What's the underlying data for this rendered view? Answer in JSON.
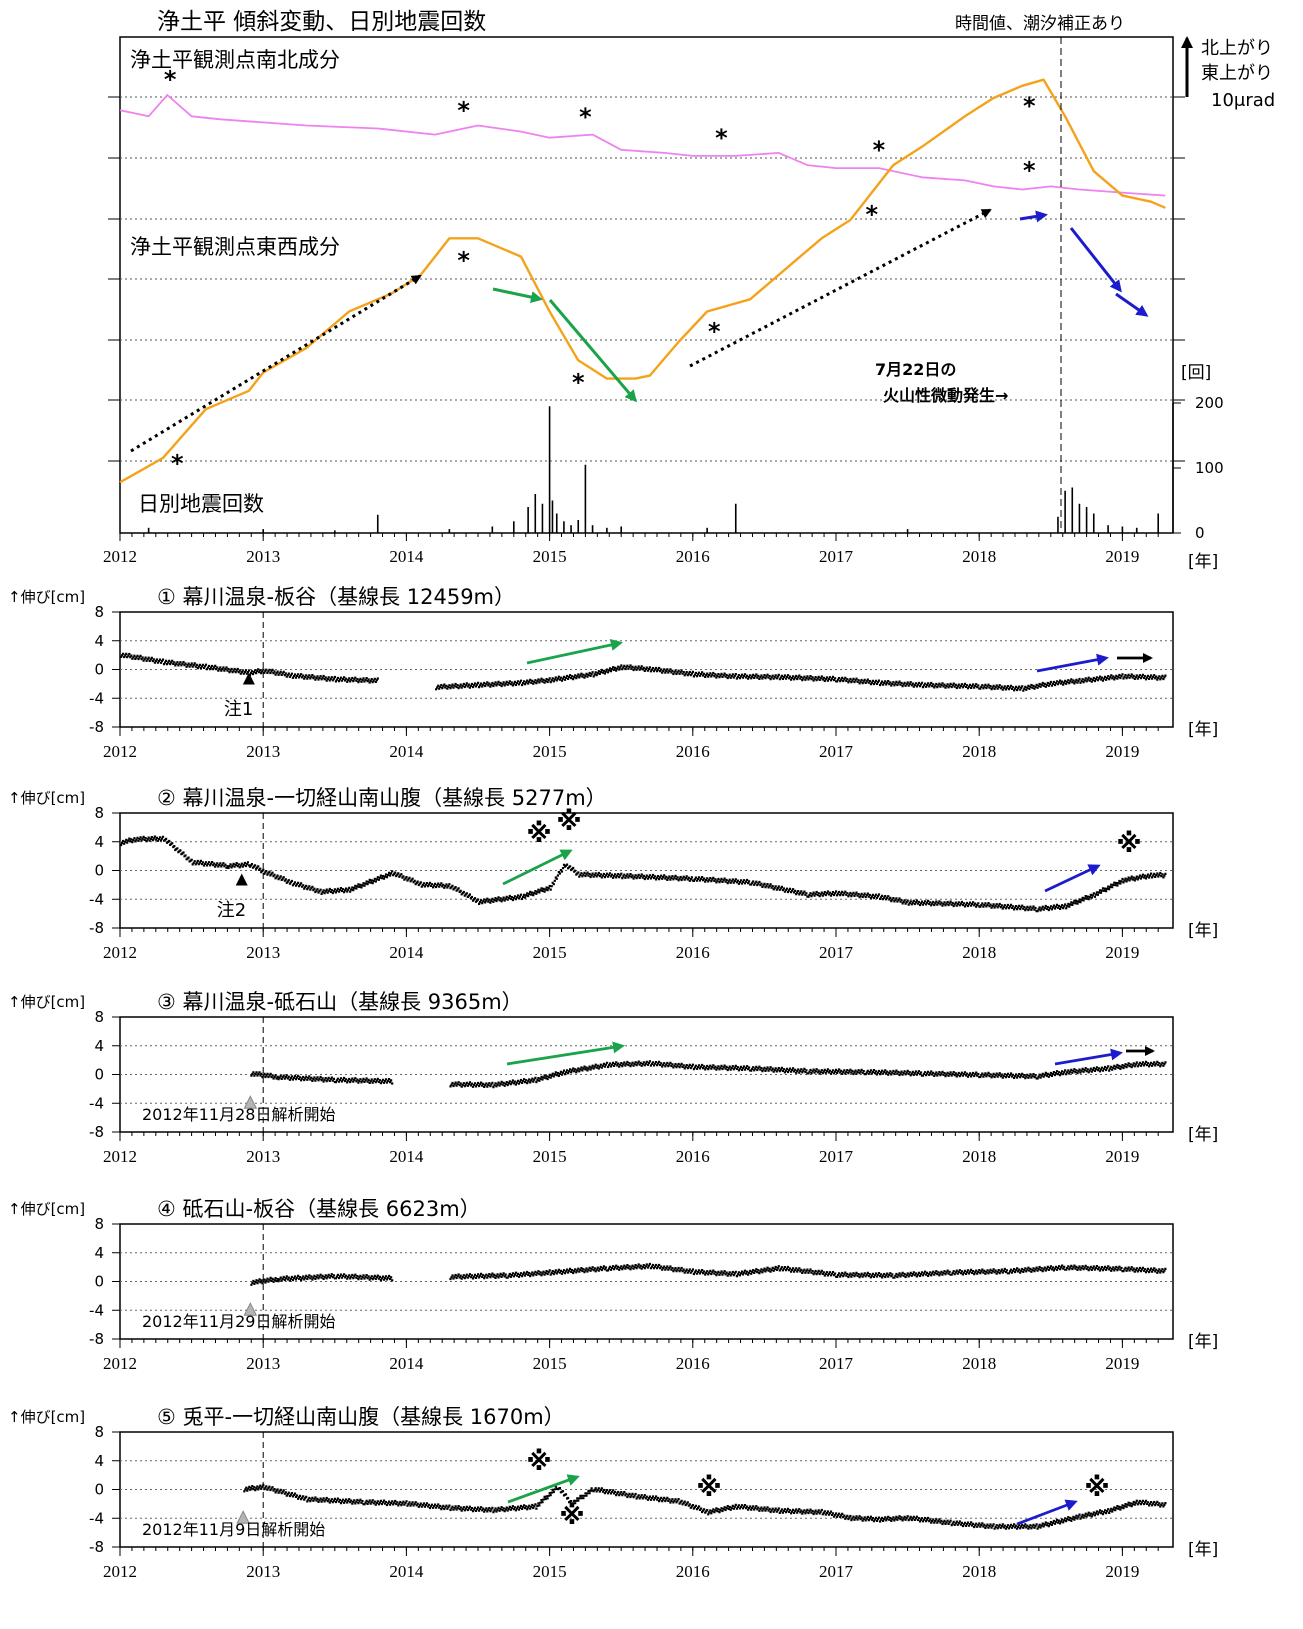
{
  "header": {
    "title": "浄土平 傾斜変動、日別地震回数",
    "note": "時間値、潮汐補正あり",
    "scale_north": "北上がり",
    "scale_east": "東上がり",
    "scale_unit": "10μrad",
    "eruption_label_1": "7月22日の",
    "eruption_label_2": "火山性微動発生→",
    "count_unit": "[回]",
    "year_unit": "[年]"
  },
  "colors": {
    "ns": "#ee82ee",
    "ew": "#f5a21b",
    "green": "#1aa34a",
    "blue": "#1c1ccc",
    "black": "#000000"
  },
  "chart_data": [
    {
      "type": "line",
      "title": "浄土平 傾斜変動、日別地震回数",
      "x_ticks": [
        "2012",
        "2013",
        "2014",
        "2015",
        "2016",
        "2017",
        "2018",
        "2019"
      ],
      "xlim": [
        2012.0,
        2019.3
      ],
      "series": [
        {
          "name": "浄土平観測点南北成分",
          "x": [
            2012.0,
            2012.2,
            2012.33,
            2012.5,
            2012.7,
            2013.0,
            2013.3,
            2013.8,
            2014.2,
            2014.5,
            2014.8,
            2015.0,
            2015.3,
            2015.5,
            2015.8,
            2016.0,
            2016.3,
            2016.6,
            2016.8,
            2017.0,
            2017.3,
            2017.6,
            2017.9,
            2018.1,
            2018.3,
            2018.5,
            2018.7,
            2019.0,
            2019.3
          ],
          "values": [
            -0.2,
            -0.3,
            0.05,
            -0.3,
            -0.35,
            -0.4,
            -0.45,
            -0.5,
            -0.6,
            -0.45,
            -0.55,
            -0.65,
            -0.6,
            -0.85,
            -0.9,
            -0.95,
            -0.95,
            -0.9,
            -1.1,
            -1.15,
            -1.15,
            -1.3,
            -1.35,
            -1.45,
            -1.5,
            -1.45,
            -1.5,
            -1.55,
            -1.6
          ]
        },
        {
          "name": "浄土平観測点東西成分",
          "x": [
            2012.0,
            2012.3,
            2012.6,
            2012.9,
            2013.0,
            2013.3,
            2013.6,
            2013.9,
            2014.1,
            2014.3,
            2014.5,
            2014.8,
            2015.0,
            2015.2,
            2015.4,
            2015.6,
            2015.7,
            2015.9,
            2016.1,
            2016.4,
            2016.7,
            2016.9,
            2017.1,
            2017.4,
            2017.6,
            2017.9,
            2018.1,
            2018.3,
            2018.45,
            2018.6,
            2018.8,
            2019.0,
            2019.2,
            2019.3
          ],
          "values": [
            -6.3,
            -5.9,
            -5.1,
            -4.8,
            -4.5,
            -4.1,
            -3.5,
            -3.2,
            -2.9,
            -2.3,
            -2.3,
            -2.6,
            -3.5,
            -4.3,
            -4.6,
            -4.6,
            -4.55,
            -4.0,
            -3.5,
            -3.3,
            -2.7,
            -2.3,
            -2.0,
            -1.1,
            -0.8,
            -0.3,
            0.0,
            0.2,
            0.3,
            -0.3,
            -1.2,
            -1.6,
            -1.7,
            -1.8
          ]
        }
      ],
      "scale_bar": "10μrad",
      "markers": [
        {
          "label": "*",
          "x": 2012.35,
          "series": "ns"
        },
        {
          "label": "*",
          "x": 2014.4,
          "series": "ns"
        },
        {
          "label": "*",
          "x": 2015.25,
          "series": "ns"
        },
        {
          "label": "*",
          "x": 2016.2,
          "series": "ns"
        },
        {
          "label": "*",
          "x": 2017.3,
          "series": "ns"
        },
        {
          "label": "*",
          "x": 2018.35,
          "series": "ns"
        },
        {
          "label": "*",
          "x": 2012.4,
          "series": "ew"
        },
        {
          "label": "*",
          "x": 2014.4,
          "series": "ew"
        },
        {
          "label": "*",
          "x": 2015.2,
          "series": "ew"
        },
        {
          "label": "*",
          "x": 2016.15,
          "series": "ew"
        },
        {
          "label": "*",
          "x": 2017.25,
          "series": "ew"
        },
        {
          "label": "*",
          "x": 2018.35,
          "series": "ew"
        }
      ]
    },
    {
      "type": "bar",
      "title": "日別地震回数",
      "unit": "[回]",
      "y_ticks": [
        "0",
        "100",
        "200"
      ],
      "ylim": [
        0,
        200
      ],
      "x": [
        2012.2,
        2013.0,
        2013.5,
        2013.8,
        2014.3,
        2014.6,
        2014.75,
        2014.85,
        2014.9,
        2014.95,
        2015.0,
        2015.02,
        2015.05,
        2015.1,
        2015.15,
        2015.2,
        2015.25,
        2015.3,
        2015.4,
        2015.5,
        2016.1,
        2016.3,
        2017.5,
        2018.55,
        2018.6,
        2018.65,
        2018.7,
        2018.75,
        2018.8,
        2018.9,
        2019.0,
        2019.1,
        2019.25
      ],
      "values": [
        8,
        6,
        4,
        28,
        6,
        10,
        18,
        40,
        60,
        45,
        195,
        50,
        30,
        18,
        12,
        20,
        105,
        12,
        8,
        10,
        8,
        45,
        6,
        25,
        65,
        70,
        45,
        40,
        30,
        12,
        10,
        8,
        30
      ]
    },
    {
      "type": "scatter",
      "title": "① 幕川温泉-板谷（基線長 12459m）",
      "ylabel": "↑伸び[cm]",
      "y_ticks": [
        "8",
        "4",
        "0",
        "-4",
        "-8"
      ],
      "ylim": [
        -8,
        8
      ],
      "note": "注1",
      "note_x": 2012.9,
      "x": [
        2012.0,
        2012.3,
        2012.6,
        2012.9,
        2013.0,
        2013.2,
        2013.5,
        2013.8,
        2014.0,
        2014.2,
        2014.5,
        2014.8,
        2015.0,
        2015.3,
        2015.5,
        2015.7,
        2016.0,
        2016.3,
        2016.6,
        2017.0,
        2017.3,
        2017.6,
        2018.0,
        2018.3,
        2018.5,
        2018.7,
        2019.0,
        2019.3
      ],
      "values": [
        2.2,
        1.2,
        0.5,
        -0.3,
        0.0,
        -0.7,
        -1.2,
        -1.4,
        null,
        -2.3,
        -2.0,
        -1.7,
        -1.3,
        -0.5,
        0.5,
        0.2,
        -0.5,
        -0.8,
        -0.9,
        -1.2,
        -1.7,
        -2.0,
        -2.2,
        -2.5,
        -1.8,
        -1.4,
        -0.8,
        -1.0
      ]
    },
    {
      "type": "scatter",
      "title": "② 幕川温泉-一切経山南山腹（基線長 5277m）",
      "ylabel": "↑伸び[cm]",
      "y_ticks": [
        "8",
        "4",
        "0",
        "-4",
        "-8"
      ],
      "ylim": [
        -8,
        8
      ],
      "note": "注2",
      "note_x": 2012.85,
      "x": [
        2012.0,
        2012.1,
        2012.3,
        2012.5,
        2012.75,
        2012.9,
        2013.0,
        2013.2,
        2013.4,
        2013.6,
        2013.9,
        2014.1,
        2014.3,
        2014.5,
        2014.8,
        2015.0,
        2015.1,
        2015.2,
        2015.5,
        2016.0,
        2016.4,
        2016.8,
        2017.0,
        2017.3,
        2017.5,
        2018.0,
        2018.4,
        2018.6,
        2018.8,
        2019.0,
        2019.2,
        2019.3
      ],
      "values": [
        4.0,
        4.5,
        4.6,
        1.3,
        0.8,
        1.0,
        0.0,
        -1.6,
        -2.8,
        -2.5,
        -0.2,
        -1.8,
        -2.0,
        -4.2,
        -3.5,
        -2.2,
        1.0,
        -0.4,
        -0.6,
        -1.0,
        -1.5,
        -3.2,
        -3.0,
        -3.5,
        -4.3,
        -4.6,
        -5.2,
        -4.8,
        -3.2,
        -1.2,
        -0.5,
        -0.5
      ]
    },
    {
      "type": "scatter",
      "title": "③ 幕川温泉-砥石山（基線長 9365m）",
      "ylabel": "↑伸び[cm]",
      "y_ticks": [
        "8",
        "4",
        "0",
        "-4",
        "-8"
      ],
      "ylim": [
        -8,
        8
      ],
      "note": "2012年11月28日解析開始",
      "note_x": 2012.91,
      "x": [
        2012.91,
        2013.1,
        2013.5,
        2013.9,
        2014.0,
        2014.3,
        2014.6,
        2014.9,
        2015.1,
        2015.4,
        2015.7,
        2016.0,
        2016.4,
        2016.8,
        2017.2,
        2017.6,
        2018.0,
        2018.4,
        2018.6,
        2018.9,
        2019.1,
        2019.3
      ],
      "values": [
        0.3,
        -0.2,
        -0.6,
        -0.8,
        null,
        -1.2,
        -1.3,
        -0.6,
        0.5,
        1.5,
        1.7,
        1.2,
        1.0,
        0.6,
        0.5,
        0.3,
        0.1,
        -0.1,
        0.5,
        1.0,
        1.6,
        1.6
      ]
    },
    {
      "type": "scatter",
      "title": "④ 砥石山-板谷（基線長 6623m）",
      "ylabel": "↑伸び[cm]",
      "y_ticks": [
        "8",
        "4",
        "0",
        "-4",
        "-8"
      ],
      "ylim": [
        -8,
        8
      ],
      "note": "2012年11月29日解析開始",
      "note_x": 2012.91,
      "x": [
        2012.91,
        2013.1,
        2013.5,
        2013.9,
        2014.0,
        2014.3,
        2014.7,
        2015.0,
        2015.4,
        2015.7,
        2016.0,
        2016.3,
        2016.6,
        2017.0,
        2017.4,
        2017.8,
        2018.2,
        2018.6,
        2019.0,
        2019.3
      ],
      "values": [
        0.0,
        0.5,
        0.9,
        0.6,
        null,
        0.8,
        1.0,
        1.4,
        2.0,
        2.3,
        1.5,
        1.2,
        2.0,
        1.1,
        1.0,
        1.4,
        1.6,
        2.1,
        1.9,
        1.6
      ]
    },
    {
      "type": "scatter",
      "title": "⑤ 兎平-一切経山南山腹（基線長 1670m）",
      "ylabel": "↑伸び[cm]",
      "y_ticks": [
        "8",
        "4",
        "0",
        "-4",
        "-8"
      ],
      "ylim": [
        -8,
        8
      ],
      "note": "2012年11月9日解析開始",
      "note_x": 2012.86,
      "x": [
        2012.86,
        2013.0,
        2013.3,
        2013.7,
        2014.0,
        2014.3,
        2014.6,
        2014.9,
        2015.05,
        2015.15,
        2015.3,
        2015.6,
        2015.9,
        2016.1,
        2016.3,
        2016.6,
        2016.9,
        2017.1,
        2017.3,
        2017.5,
        2017.8,
        2018.1,
        2018.4,
        2018.7,
        2018.9,
        2019.1,
        2019.3
      ],
      "values": [
        0.2,
        0.5,
        -1.2,
        -1.6,
        -1.8,
        -2.4,
        -2.7,
        -2.2,
        0.5,
        -1.8,
        0.2,
        -0.8,
        -1.5,
        -3.0,
        -2.2,
        -2.8,
        -3.0,
        -3.8,
        -4.0,
        -3.8,
        -4.5,
        -5.0,
        -5.0,
        -3.6,
        -2.8,
        -1.6,
        -2.0
      ]
    }
  ]
}
